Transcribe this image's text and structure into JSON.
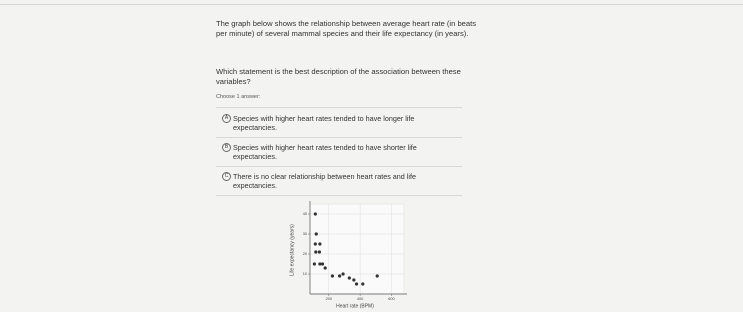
{
  "question": {
    "intro": "The graph below shows the relationship between average heart rate (in beats per minute) of several mammal species and their life expectancy (in years).",
    "prompt": "Which statement is the best description of the association between these variables?",
    "instruction": "Choose 1 answer:"
  },
  "choices": [
    {
      "letter": "A",
      "text": "Species with higher heart rates tended to have longer life expectancies."
    },
    {
      "letter": "B",
      "text": "Species with higher heart rates tended to have shorter life expectancies."
    },
    {
      "letter": "C",
      "text": "There is no clear relationship between heart rates and life expectancies."
    }
  ],
  "chart_data": {
    "type": "scatter",
    "x_label": "Heart rate (BPM)",
    "y_label": "Life expectancy (years)",
    "color": "#333333",
    "x": [
      114,
      120,
      114,
      143,
      117,
      140,
      108,
      143,
      160,
      177,
      223,
      269,
      291,
      331,
      360,
      377,
      417,
      509
    ],
    "values": [
      40,
      30,
      25,
      25,
      21,
      21,
      15,
      15,
      15,
      13,
      9,
      9,
      10,
      8,
      7,
      5,
      5,
      9
    ],
    "xlim": [
      80,
      680
    ],
    "ylim": [
      0,
      45
    ],
    "xticks": [
      200,
      400,
      600
    ],
    "yticks": [
      10,
      20,
      30,
      40
    ],
    "grid": true
  }
}
